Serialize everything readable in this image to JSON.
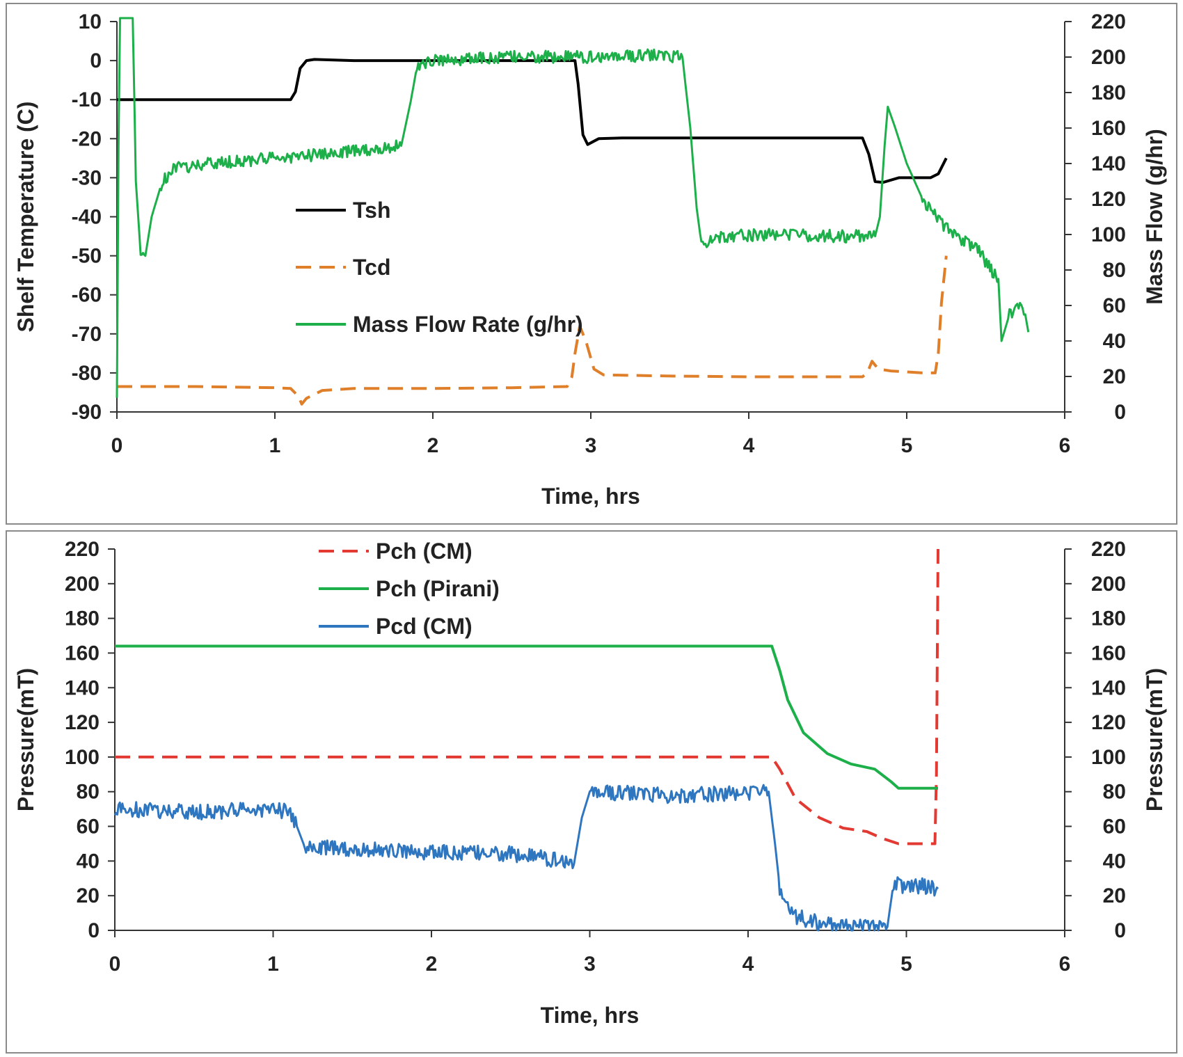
{
  "chart_data": [
    {
      "type": "line",
      "title": "",
      "xlabel": "Time, hrs",
      "ylabel": "Shelf Temperature (C)",
      "y2label": "Mass Flow (g/hr)",
      "xlim": [
        0,
        6
      ],
      "ylim": [
        -90,
        10
      ],
      "y2lim": [
        0,
        220
      ],
      "xticks": [
        "0",
        "1",
        "2",
        "3",
        "4",
        "5",
        "6"
      ],
      "yticks": [
        "10",
        "0",
        "-10",
        "-20",
        "-30",
        "-40",
        "-50",
        "-60",
        "-70",
        "-80",
        "-90"
      ],
      "y2ticks": [
        "220",
        "200",
        "180",
        "160",
        "140",
        "120",
        "100",
        "80",
        "60",
        "40",
        "20",
        "0"
      ],
      "legend_position": "center-left",
      "series": [
        {
          "name": "Tsh",
          "axis": "left",
          "color": "#000000",
          "dash": "solid",
          "points": [
            [
              0,
              -10
            ],
            [
              1.1,
              -10
            ],
            [
              1.13,
              -8
            ],
            [
              1.16,
              -2
            ],
            [
              1.2,
              0
            ],
            [
              1.25,
              0.3
            ],
            [
              1.5,
              0
            ],
            [
              1.9,
              0
            ],
            [
              2.9,
              0
            ],
            [
              2.92,
              -6
            ],
            [
              2.95,
              -19
            ],
            [
              2.98,
              -21.5
            ],
            [
              3.05,
              -20
            ],
            [
              3.2,
              -19.8
            ],
            [
              3.6,
              -19.8
            ],
            [
              4.0,
              -19.8
            ],
            [
              4.5,
              -19.8
            ],
            [
              4.72,
              -19.8
            ],
            [
              4.76,
              -24
            ],
            [
              4.8,
              -31
            ],
            [
              4.85,
              -31.2
            ],
            [
              4.95,
              -30
            ],
            [
              5.15,
              -30
            ],
            [
              5.2,
              -29
            ],
            [
              5.25,
              -25
            ]
          ]
        },
        {
          "name": "Tcd",
          "axis": "left",
          "color": "#E07F2A",
          "dash": "dashed",
          "points": [
            [
              0,
              -83.5
            ],
            [
              0.5,
              -83.5
            ],
            [
              1.0,
              -83.8
            ],
            [
              1.1,
              -84
            ],
            [
              1.15,
              -86
            ],
            [
              1.17,
              -88
            ],
            [
              1.2,
              -86.5
            ],
            [
              1.3,
              -84.5
            ],
            [
              1.5,
              -84
            ],
            [
              2.0,
              -84
            ],
            [
              2.5,
              -83.8
            ],
            [
              2.85,
              -83.5
            ],
            [
              2.88,
              -81
            ],
            [
              2.9,
              -75
            ],
            [
              2.93,
              -68
            ],
            [
              2.97,
              -72
            ],
            [
              3.02,
              -79
            ],
            [
              3.08,
              -80.5
            ],
            [
              3.5,
              -80.8
            ],
            [
              4.0,
              -81
            ],
            [
              4.5,
              -81
            ],
            [
              4.72,
              -81
            ],
            [
              4.75,
              -80
            ],
            [
              4.78,
              -77
            ],
            [
              4.82,
              -79
            ],
            [
              4.9,
              -79.5
            ],
            [
              5.1,
              -80
            ],
            [
              5.18,
              -80
            ],
            [
              5.2,
              -75
            ],
            [
              5.22,
              -62
            ],
            [
              5.25,
              -50
            ]
          ]
        },
        {
          "name": "Mass Flow Rate (g/hr)",
          "axis": "right",
          "color": "#1DB04A",
          "dash": "solid",
          "noisy": true,
          "points": [
            [
              0,
              8
            ],
            [
              0.01,
              150
            ],
            [
              0.02,
              225
            ],
            [
              0.1,
              225
            ],
            [
              0.12,
              130
            ],
            [
              0.15,
              90
            ],
            [
              0.18,
              88
            ],
            [
              0.22,
              110
            ],
            [
              0.28,
              128
            ],
            [
              0.35,
              137
            ],
            [
              0.6,
              140
            ],
            [
              1.0,
              143
            ],
            [
              1.3,
              145
            ],
            [
              1.6,
              148
            ],
            [
              1.8,
              150
            ],
            [
              1.86,
              175
            ],
            [
              1.9,
              195
            ],
            [
              2.0,
              198
            ],
            [
              2.5,
              200
            ],
            [
              3.0,
              200
            ],
            [
              3.4,
              201
            ],
            [
              3.58,
              200
            ],
            [
              3.63,
              160
            ],
            [
              3.67,
              115
            ],
            [
              3.7,
              95
            ],
            [
              3.8,
              99
            ],
            [
              4.2,
              100
            ],
            [
              4.6,
              99
            ],
            [
              4.8,
              99
            ],
            [
              4.83,
              110
            ],
            [
              4.86,
              150
            ],
            [
              4.88,
              172
            ],
            [
              4.92,
              162
            ],
            [
              5.0,
              140
            ],
            [
              5.1,
              120
            ],
            [
              5.2,
              108
            ],
            [
              5.3,
              100
            ],
            [
              5.45,
              92
            ],
            [
              5.52,
              82
            ],
            [
              5.58,
              75
            ],
            [
              5.6,
              40
            ],
            [
              5.65,
              55
            ],
            [
              5.7,
              60
            ],
            [
              5.75,
              55
            ],
            [
              5.77,
              45
            ]
          ]
        }
      ]
    },
    {
      "type": "line",
      "title": "",
      "xlabel": "Time, hrs",
      "ylabel": "Pressure(mT)",
      "y2label": "Pressure(mT)",
      "xlim": [
        0,
        6
      ],
      "ylim": [
        0,
        220
      ],
      "y2lim": [
        0,
        220
      ],
      "xticks": [
        "0",
        "1",
        "2",
        "3",
        "4",
        "5",
        "6"
      ],
      "yticks": [
        "220",
        "200",
        "180",
        "160",
        "140",
        "120",
        "100",
        "80",
        "60",
        "40",
        "20",
        "0"
      ],
      "y2ticks": [
        "220",
        "200",
        "180",
        "160",
        "140",
        "120",
        "100",
        "80",
        "60",
        "40",
        "20",
        "0"
      ],
      "legend_position": "top-left",
      "series": [
        {
          "name": "Pch (CM)",
          "color": "#E23A33",
          "dash": "dashed",
          "points": [
            [
              0,
              100
            ],
            [
              1,
              100
            ],
            [
              2,
              100
            ],
            [
              3,
              100
            ],
            [
              4.15,
              100
            ],
            [
              4.2,
              93
            ],
            [
              4.3,
              76
            ],
            [
              4.45,
              65
            ],
            [
              4.6,
              59
            ],
            [
              4.75,
              57
            ],
            [
              4.85,
              53
            ],
            [
              4.95,
              50
            ],
            [
              5.18,
              50
            ],
            [
              5.19,
              90
            ],
            [
              5.2,
              220
            ]
          ]
        },
        {
          "name": "Pch (Pirani)",
          "color": "#1DB04A",
          "dash": "solid",
          "points": [
            [
              0,
              164
            ],
            [
              1,
              164
            ],
            [
              2,
              164
            ],
            [
              3,
              164
            ],
            [
              4.0,
              164
            ],
            [
              4.15,
              164
            ],
            [
              4.2,
              150
            ],
            [
              4.25,
              133
            ],
            [
              4.35,
              114
            ],
            [
              4.5,
              102
            ],
            [
              4.65,
              96
            ],
            [
              4.8,
              93
            ],
            [
              4.9,
              86
            ],
            [
              4.95,
              82
            ],
            [
              5.2,
              82
            ]
          ]
        },
        {
          "name": "Pcd (CM)",
          "color": "#2F76C0",
          "dash": "solid",
          "noisy": true,
          "points": [
            [
              0,
              70
            ],
            [
              0.5,
              68
            ],
            [
              1.0,
              70
            ],
            [
              1.1,
              68
            ],
            [
              1.15,
              60
            ],
            [
              1.2,
              48
            ],
            [
              1.5,
              47
            ],
            [
              2.0,
              45
            ],
            [
              2.5,
              44
            ],
            [
              2.85,
              40
            ],
            [
              2.9,
              38
            ],
            [
              2.95,
              65
            ],
            [
              3.0,
              80
            ],
            [
              3.5,
              78
            ],
            [
              4.0,
              79
            ],
            [
              4.13,
              80
            ],
            [
              4.17,
              50
            ],
            [
              4.2,
              25
            ],
            [
              4.3,
              8
            ],
            [
              4.5,
              3
            ],
            [
              4.7,
              2
            ],
            [
              4.88,
              2
            ],
            [
              4.92,
              28
            ],
            [
              5.0,
              25
            ],
            [
              5.1,
              26
            ],
            [
              5.2,
              24
            ]
          ]
        }
      ]
    }
  ]
}
